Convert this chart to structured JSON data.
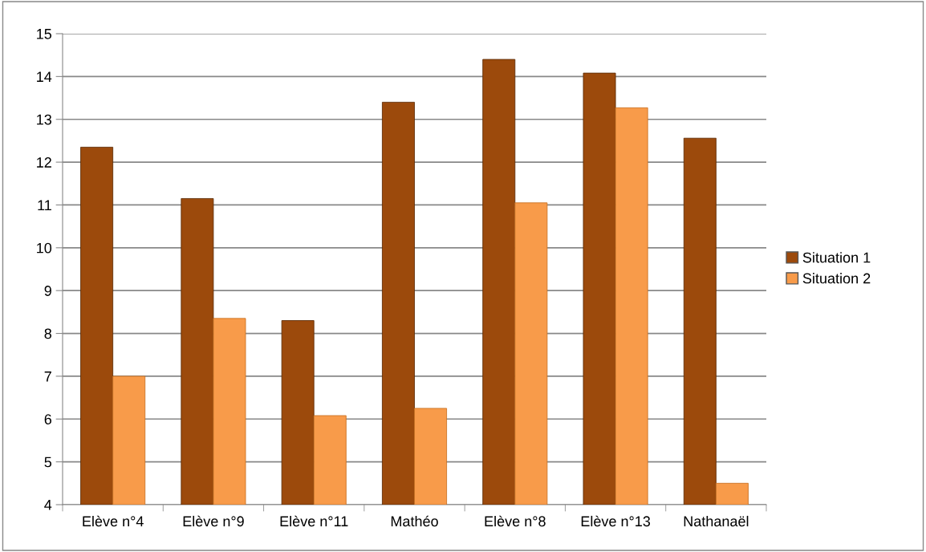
{
  "chart_data": {
    "type": "bar",
    "categories": [
      "Elève n°4",
      "Elève n°9",
      "Elève n°11",
      "Mathéo",
      "Elève n°8",
      "Elève n°13",
      "Nathanaël"
    ],
    "series": [
      {
        "name": "Situation 1",
        "color": "#9c4a0c",
        "values": [
          12.35,
          11.15,
          8.3,
          13.4,
          14.4,
          14.08,
          12.56
        ]
      },
      {
        "name": "Situation 2",
        "color": "#f89b4a",
        "values": [
          7.0,
          8.35,
          6.08,
          6.25,
          11.05,
          13.27,
          4.5
        ]
      }
    ],
    "ylim": [
      4,
      15
    ],
    "yticks": [
      4,
      5,
      6,
      7,
      8,
      9,
      10,
      11,
      12,
      13,
      14,
      15
    ],
    "grid": "y",
    "legend": "right"
  }
}
